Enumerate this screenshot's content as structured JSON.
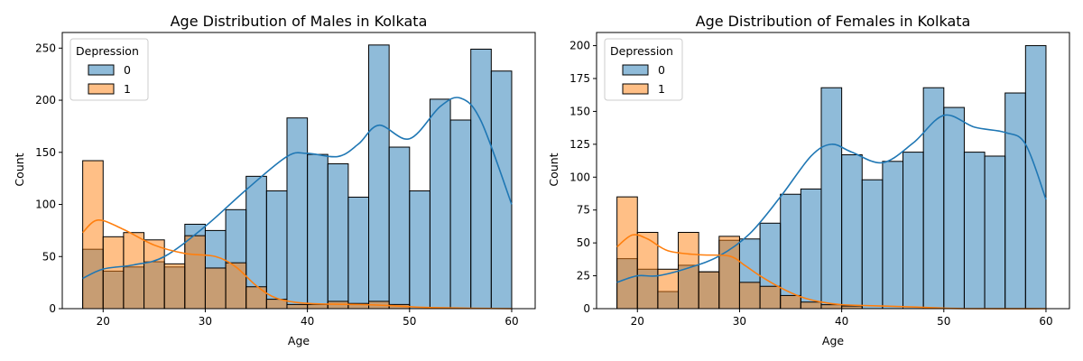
{
  "chart_data": [
    {
      "type": "bar",
      "title": "Age Distribution of Males in Kolkata",
      "xlabel": "Age",
      "ylabel": "Count",
      "xlim": [
        16,
        62.3
      ],
      "ylim": [
        0,
        265
      ],
      "xticks": [
        20,
        30,
        40,
        50,
        60
      ],
      "yticks": [
        0,
        50,
        100,
        150,
        200,
        250
      ],
      "legend": {
        "title": "Depression",
        "entries": [
          "0",
          "1"
        ],
        "position": "top-left"
      },
      "bin_edges": [
        18,
        20,
        22,
        24,
        26,
        28,
        30,
        32,
        34,
        36,
        38,
        40,
        42,
        44,
        46,
        48,
        50,
        52,
        54,
        56,
        58,
        60
      ],
      "series": [
        {
          "name": "0",
          "color": "#1f77b4",
          "values": [
            57,
            36,
            40,
            45,
            40,
            81,
            75,
            95,
            127,
            113,
            183,
            148,
            139,
            107,
            253,
            155,
            113,
            201,
            181,
            249,
            228
          ]
        },
        {
          "name": "1",
          "color": "#ff7f0e",
          "values": [
            142,
            69,
            73,
            66,
            43,
            70,
            39,
            44,
            21,
            9,
            4,
            4,
            7,
            5,
            7,
            4,
            0,
            0,
            0,
            0,
            0
          ]
        }
      ],
      "kde": [
        {
          "name": "0",
          "x": [
            18,
            20,
            23,
            26,
            30,
            34,
            38,
            40,
            43,
            45,
            47,
            50,
            53,
            55,
            57,
            60
          ],
          "y": [
            29,
            38,
            42,
            50,
            79,
            114,
            146,
            149,
            146,
            158,
            176,
            163,
            194,
            202,
            180,
            100
          ]
        },
        {
          "name": "1",
          "x": [
            18,
            19.5,
            22,
            25,
            28,
            31,
            33,
            35,
            37,
            40,
            45,
            48,
            52,
            60
          ],
          "y": [
            73,
            85,
            76,
            61,
            53,
            50,
            40,
            22,
            10,
            5,
            4,
            3,
            1,
            0
          ]
        }
      ]
    },
    {
      "type": "bar",
      "title": "Age Distribution of Females in Kolkata",
      "xlabel": "Age",
      "ylabel": "Count",
      "xlim": [
        16,
        62.3
      ],
      "ylim": [
        0,
        210
      ],
      "xticks": [
        20,
        30,
        40,
        50,
        60
      ],
      "yticks": [
        0,
        25,
        50,
        75,
        100,
        125,
        150,
        175,
        200
      ],
      "legend": {
        "title": "Depression",
        "entries": [
          "0",
          "1"
        ],
        "position": "top-left"
      },
      "bin_edges": [
        18,
        20,
        22,
        24,
        26,
        28,
        30,
        32,
        34,
        36,
        38,
        40,
        42,
        44,
        46,
        48,
        50,
        52,
        54,
        56,
        58,
        60
      ],
      "series": [
        {
          "name": "0",
          "color": "#1f77b4",
          "values": [
            38,
            30,
            13,
            33,
            28,
            52,
            53,
            65,
            87,
            91,
            168,
            117,
            98,
            112,
            119,
            168,
            153,
            119,
            116,
            164,
            200
          ]
        },
        {
          "name": "1",
          "color": "#ff7f0e",
          "values": [
            85,
            58,
            30,
            58,
            28,
            55,
            20,
            17,
            10,
            5,
            3,
            2,
            0,
            0,
            0,
            0,
            0,
            0,
            0,
            0,
            0
          ]
        }
      ],
      "kde": [
        {
          "name": "0",
          "x": [
            18,
            20,
            22,
            25,
            28,
            31,
            34,
            37,
            39,
            41,
            44,
            47,
            50,
            53,
            56,
            58,
            60
          ],
          "y": [
            20,
            25,
            25,
            31,
            40,
            57,
            85,
            116,
            125,
            119,
            111,
            126,
            147,
            138,
            134,
            125,
            83
          ]
        },
        {
          "name": "1",
          "x": [
            18,
            19.5,
            21,
            23,
            26,
            29,
            30.5,
            32,
            34,
            36,
            38,
            40,
            44,
            48,
            52,
            60
          ],
          "y": [
            47,
            56,
            53,
            44,
            41,
            40,
            33,
            25,
            16,
            9,
            5,
            3,
            2,
            1,
            0,
            0
          ]
        }
      ]
    }
  ]
}
